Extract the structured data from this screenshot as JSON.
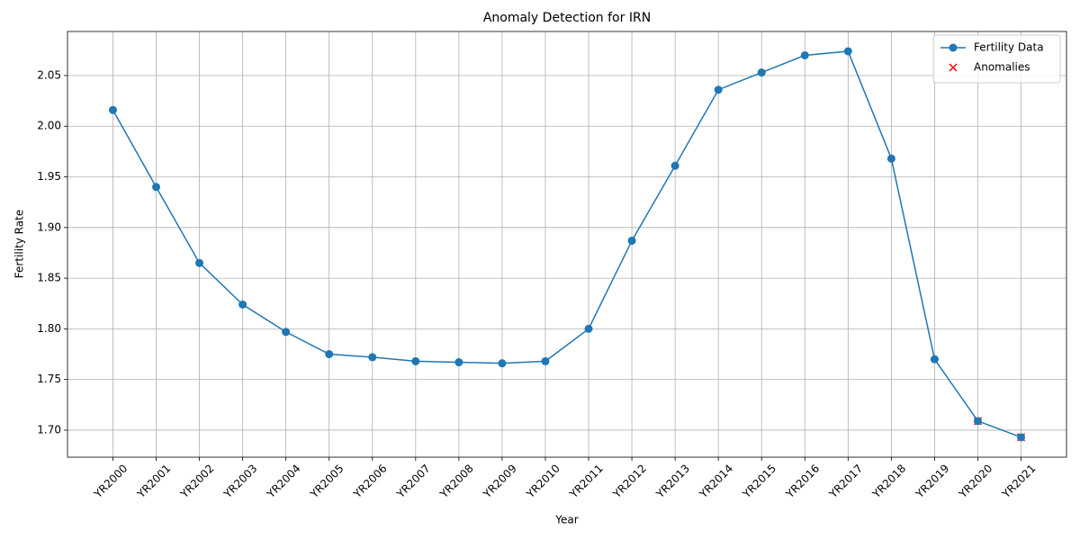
{
  "chart_data": {
    "type": "line",
    "title": "Anomaly Detection for IRN",
    "x_label": "Year",
    "y_label": "Fertility Rate",
    "categories": [
      "YR2000",
      "YR2001",
      "YR2002",
      "YR2003",
      "YR2004",
      "YR2005",
      "YR2006",
      "YR2007",
      "YR2008",
      "YR2009",
      "YR2010",
      "YR2011",
      "YR2012",
      "YR2013",
      "YR2014",
      "YR2015",
      "YR2016",
      "YR2017",
      "YR2018",
      "YR2019",
      "YR2020",
      "YR2021"
    ],
    "series": [
      {
        "name": "Fertility Data",
        "color": "#1f77b4",
        "marker": "o",
        "values": [
          2.016,
          1.94,
          1.865,
          1.824,
          1.797,
          1.775,
          1.772,
          1.768,
          1.767,
          1.766,
          1.768,
          1.8,
          1.887,
          1.961,
          2.036,
          2.053,
          2.07,
          2.074,
          1.968,
          1.77,
          1.709,
          1.693
        ]
      },
      {
        "name": "Anomalies",
        "color": "#ff0000",
        "marker": "x",
        "values": [
          null,
          null,
          null,
          null,
          null,
          null,
          null,
          null,
          null,
          null,
          null,
          null,
          null,
          null,
          null,
          null,
          null,
          null,
          null,
          null,
          1.709,
          1.693
        ]
      }
    ],
    "ylim": [
      1.6733,
      2.0935
    ],
    "yticks": [
      {
        "value": 1.7,
        "label": "1.70"
      },
      1.75,
      {
        "value": 1.8,
        "label": "1.80"
      },
      1.85,
      {
        "value": 1.9,
        "label": "1.90"
      },
      1.95,
      {
        "value": 2.0,
        "label": "2.00"
      },
      2.05
    ],
    "grid": true,
    "legend": "upper right"
  }
}
